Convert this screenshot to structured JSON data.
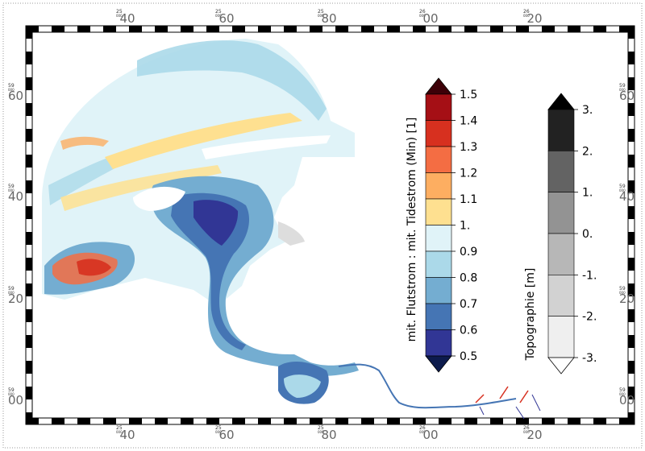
{
  "map": {
    "grid_labels": {
      "x": [
        {
          "small": "25",
          "tiny": "000",
          "big": "40"
        },
        {
          "small": "25",
          "tiny": "000",
          "big": "60"
        },
        {
          "small": "25",
          "tiny": "000",
          "big": "80"
        },
        {
          "small": "26",
          "tiny": "000",
          "big": "00"
        },
        {
          "small": "26",
          "tiny": "000",
          "big": "20"
        }
      ],
      "y": [
        {
          "small": "59",
          "tiny": "000",
          "big": "60"
        },
        {
          "small": "59",
          "tiny": "000",
          "big": "40"
        },
        {
          "small": "59",
          "tiny": "000",
          "big": "20"
        },
        {
          "small": "59",
          "tiny": "000",
          "big": "00"
        }
      ]
    }
  },
  "ratio_legend": {
    "title": "mit. Flutstrom : mit. Tidestrom (Min) [1]",
    "bins": [
      {
        "label": "1.5",
        "color": "#67000d"
      },
      {
        "label": "1.4",
        "color": "#a50f15"
      },
      {
        "label": "1.3",
        "color": "#d7301f"
      },
      {
        "label": "1.2",
        "color": "#f46d43"
      },
      {
        "label": "1.1",
        "color": "#fdae61"
      },
      {
        "label": "1.",
        "color": "#fee090"
      },
      {
        "label": "0.9",
        "color": "#e0f3f8"
      },
      {
        "label": "0.8",
        "color": "#abd9e9"
      },
      {
        "label": "0.7",
        "color": "#74add1"
      },
      {
        "label": "0.6",
        "color": "#4575b4"
      },
      {
        "label": "0.5",
        "color": "#313695"
      }
    ],
    "under_color": "#0d1b4d",
    "over_color": "#3d0008"
  },
  "topo_legend": {
    "title": "Topographie [m]",
    "bins": [
      {
        "label": "3.",
        "color": "#222222"
      },
      {
        "label": "2.",
        "color": "#636363"
      },
      {
        "label": "1.",
        "color": "#939393"
      },
      {
        "label": "0.",
        "color": "#b7b7b7"
      },
      {
        "label": "-1.",
        "color": "#d2d2d2"
      },
      {
        "label": "-2.",
        "color": "#efefef"
      },
      {
        "label": "-3.",
        "color": "#ffffff"
      }
    ],
    "over_color": "#000000",
    "under_color": "#ffffff"
  }
}
